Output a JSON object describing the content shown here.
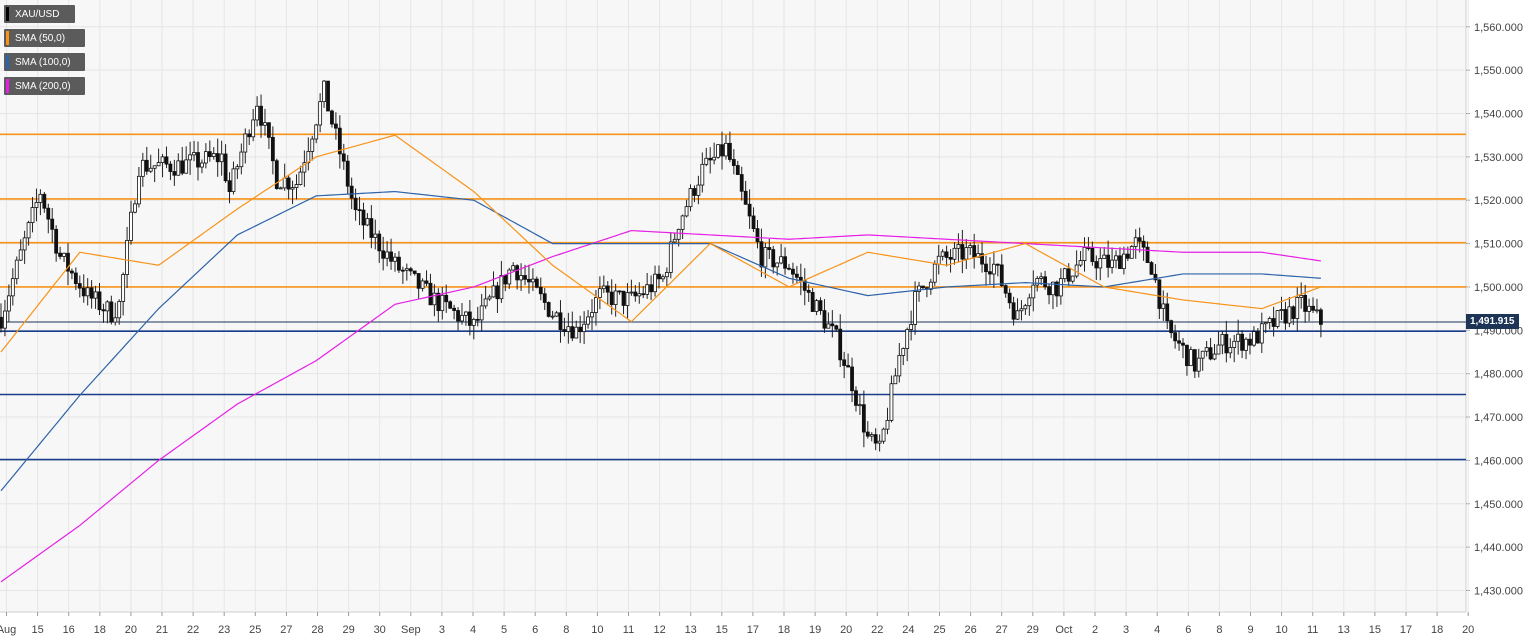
{
  "chart_data": {
    "type": "candlestick",
    "symbol": "XAU/USD",
    "legend": [
      {
        "label": "XAU/USD",
        "color": "#000000"
      },
      {
        "label": "SMA (50,0)",
        "color": "#f7931a"
      },
      {
        "label": "SMA (100,0)",
        "color": "#2e63a8"
      },
      {
        "label": "SMA (200,0)",
        "color": "#e61ee6"
      }
    ],
    "legend_position": "top-left",
    "ylim": [
      1425,
      1565
    ],
    "y_ticks": [
      "1,430.000",
      "1,440.000",
      "1,450.000",
      "1,460.000",
      "1,470.000",
      "1,480.000",
      "1,490.000",
      "1,500.000",
      "1,510.000",
      "1,520.000",
      "1,530.000",
      "1,540.000",
      "1,550.000",
      "1,560.000"
    ],
    "x_ticks": [
      "Aug",
      "15",
      "16",
      "18",
      "20",
      "21",
      "22",
      "23",
      "25",
      "27",
      "28",
      "29",
      "30",
      "Sep",
      "3",
      "4",
      "5",
      "6",
      "8",
      "10",
      "11",
      "12",
      "13",
      "15",
      "17",
      "18",
      "19",
      "20",
      "22",
      "24",
      "25",
      "26",
      "27",
      "29",
      "Oct",
      "2",
      "3",
      "4",
      "6",
      "8",
      "9",
      "10",
      "11",
      "13",
      "15",
      "17",
      "18",
      "20"
    ],
    "current_price": 1491.915,
    "current_price_label": "1,491.915",
    "resistance_levels": [
      1535.2,
      1520.3,
      1510.2,
      1500.0
    ],
    "support_levels": [
      1489.8,
      1475.2,
      1460.2
    ],
    "colors": {
      "resistance": "#f7931a",
      "support": "#1a3e8c",
      "price_line": "#1c3557",
      "grid": "#e6e6e6",
      "background": "#ffffff",
      "plot_background": "#f7f7f7"
    },
    "sma_key_x": [
      0,
      20,
      40,
      60,
      80,
      100,
      120,
      140,
      160,
      180,
      200,
      220,
      240,
      260,
      280,
      300,
      320,
      335
    ],
    "sma50": [
      1485,
      1508,
      1505,
      1518,
      1530,
      1535,
      1522,
      1505,
      1492,
      1510,
      1500,
      1508,
      1505,
      1510,
      1500,
      1497,
      1495,
      1500
    ],
    "sma100": [
      1453,
      1475,
      1495,
      1512,
      1521,
      1522,
      1520,
      1510,
      1510,
      1510,
      1502,
      1498,
      1500,
      1501,
      1500,
      1503,
      1503,
      1502
    ],
    "sma200": [
      1432,
      1445,
      1460,
      1473,
      1483,
      1496,
      1500,
      1507,
      1513,
      1512,
      1511,
      1512,
      1511,
      1510,
      1509,
      1508,
      1508,
      1506
    ],
    "candle_key_x": [
      0,
      10,
      15,
      22,
      28,
      30,
      35,
      45,
      56,
      58,
      65,
      70,
      75,
      82,
      90,
      100,
      110,
      120,
      130,
      140,
      146,
      152,
      160,
      168,
      172,
      178,
      184,
      193,
      200,
      205,
      212,
      216,
      220,
      223,
      228,
      232,
      238,
      245,
      252,
      258,
      262,
      268,
      275,
      282,
      288,
      292,
      296,
      303,
      310,
      318,
      325,
      330,
      335
    ],
    "candle_key_close": [
      1493,
      1522,
      1507,
      1498,
      1494,
      1496,
      1528,
      1528,
      1530,
      1522,
      1543,
      1525,
      1524,
      1545,
      1517,
      1505,
      1497,
      1491,
      1505,
      1494,
      1490,
      1498,
      1497,
      1502,
      1515,
      1527,
      1532,
      1507,
      1505,
      1498,
      1488,
      1478,
      1465,
      1462,
      1484,
      1497,
      1506,
      1508,
      1505,
      1493,
      1502,
      1500,
      1507,
      1505,
      1510,
      1505,
      1490,
      1482,
      1487,
      1488,
      1493,
      1496,
      1492
    ]
  }
}
